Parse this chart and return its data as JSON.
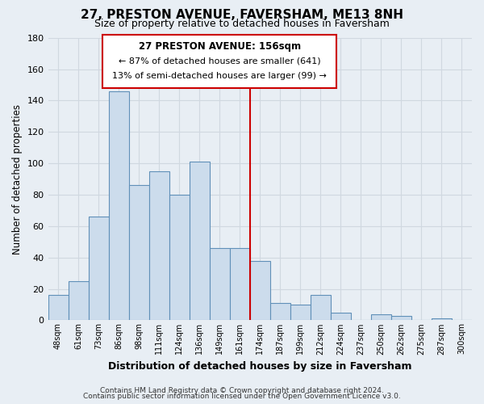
{
  "title": "27, PRESTON AVENUE, FAVERSHAM, ME13 8NH",
  "subtitle": "Size of property relative to detached houses in Faversham",
  "xlabel": "Distribution of detached houses by size in Faversham",
  "ylabel": "Number of detached properties",
  "bar_labels": [
    "48sqm",
    "61sqm",
    "73sqm",
    "86sqm",
    "98sqm",
    "111sqm",
    "124sqm",
    "136sqm",
    "149sqm",
    "161sqm",
    "174sqm",
    "187sqm",
    "199sqm",
    "212sqm",
    "224sqm",
    "237sqm",
    "250sqm",
    "262sqm",
    "275sqm",
    "287sqm",
    "300sqm"
  ],
  "bar_values": [
    16,
    25,
    66,
    146,
    86,
    95,
    80,
    101,
    46,
    46,
    38,
    11,
    10,
    16,
    5,
    0,
    4,
    3,
    0,
    1,
    0
  ],
  "bar_color": "#ccdcec",
  "bar_edge_color": "#6090b8",
  "ylim": [
    0,
    180
  ],
  "yticks": [
    0,
    20,
    40,
    60,
    80,
    100,
    120,
    140,
    160,
    180
  ],
  "property_line_x": 9.5,
  "property_line_color": "#cc0000",
  "annotation_title": "27 PRESTON AVENUE: 156sqm",
  "annotation_line1": "← 87% of detached houses are smaller (641)",
  "annotation_line2": "13% of semi-detached houses are larger (99) →",
  "annotation_box_color": "#ffffff",
  "annotation_box_edge_color": "#cc0000",
  "footer_line1": "Contains HM Land Registry data © Crown copyright and database right 2024.",
  "footer_line2": "Contains public sector information licensed under the Open Government Licence v3.0.",
  "background_color": "#e8eef4",
  "grid_color": "#d0d8e0",
  "plot_bg_color": "#e8eef4"
}
